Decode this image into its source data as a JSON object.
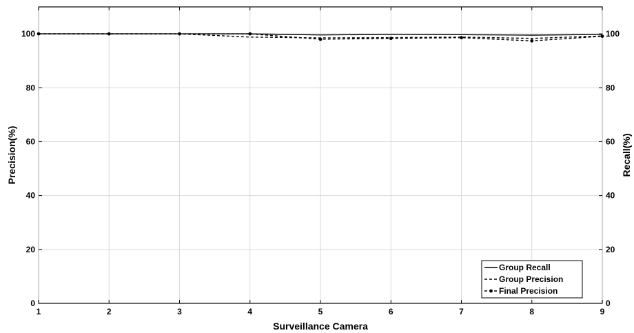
{
  "chart_data": {
    "type": "line",
    "xlabel": "Surveillance Camera",
    "ylabel_left": "Precision(%)",
    "ylabel_right": "Recall(%)",
    "x": [
      1,
      2,
      3,
      4,
      5,
      6,
      7,
      8,
      9
    ],
    "xlim": [
      1,
      9
    ],
    "ylim": [
      0,
      110
    ],
    "yticks": [
      0,
      20,
      40,
      60,
      80,
      100
    ],
    "xticks": [
      1,
      2,
      3,
      4,
      5,
      6,
      7,
      8,
      9
    ],
    "grid": true,
    "legend_position": "bottom-right",
    "series": [
      {
        "name": "Group Recall",
        "style": "solid",
        "marker": "none",
        "values": [
          100,
          100,
          100,
          100,
          99.6,
          99.8,
          99.7,
          99.5,
          99.8
        ]
      },
      {
        "name": "Group Precision",
        "style": "dashed",
        "marker": "none",
        "values": [
          100,
          100,
          100,
          98.8,
          98.5,
          98.6,
          98.8,
          98.3,
          99.2
        ]
      },
      {
        "name": "Final Precision",
        "style": "dashed",
        "marker": "dot",
        "values": [
          100,
          100,
          100,
          100,
          98.0,
          98.3,
          98.6,
          97.4,
          99.1
        ]
      }
    ]
  }
}
